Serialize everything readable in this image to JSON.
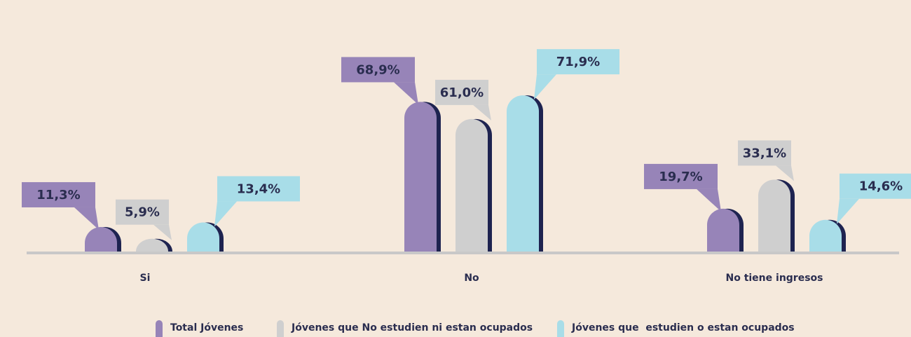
{
  "chart_data": {
    "type": "bar",
    "categories": [
      "Si",
      "No",
      "No tiene ingresos"
    ],
    "series": [
      {
        "name": "Total Jóvenes",
        "color": "#9784b8",
        "values": [
          11.3,
          68.9,
          19.7
        ],
        "value_labels": [
          "11,3%",
          "68,9%",
          "19,7%"
        ]
      },
      {
        "name": "Jóvenes que No estudien ni estan ocupados",
        "color": "#cfcfcf",
        "values": [
          5.9,
          61.0,
          33.1
        ],
        "value_labels": [
          "5,9%",
          "61,0%",
          "33,1%"
        ]
      },
      {
        "name": "Jóvenes que  estudien o estan ocupados",
        "color": "#a8dde8",
        "values": [
          13.4,
          71.9,
          14.6
        ],
        "value_labels": [
          "13,4%",
          "71,9%",
          "14,6%"
        ]
      }
    ]
  }
}
